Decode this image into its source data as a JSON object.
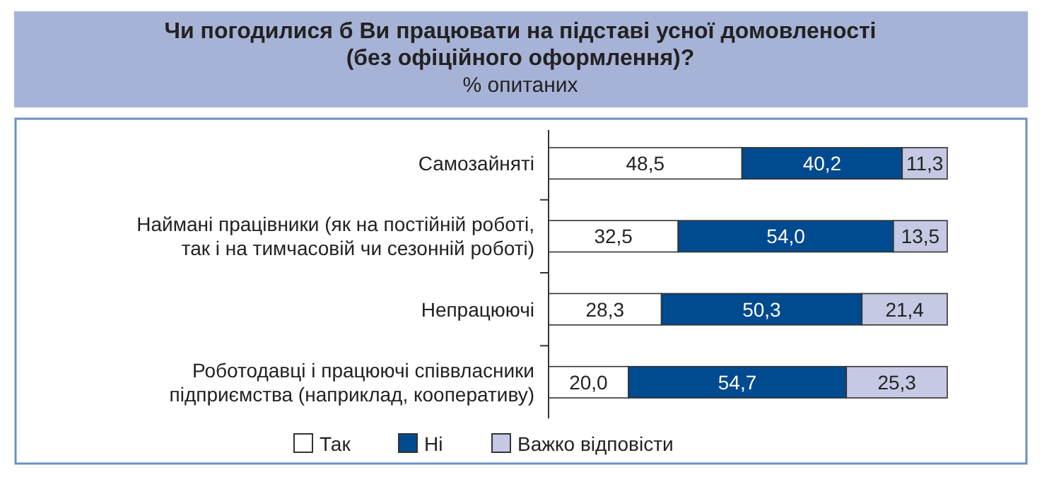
{
  "chart_data": {
    "type": "bar",
    "orientation": "horizontal",
    "stacked": true,
    "title": "Чи погодилися б Ви працювати на підставі усної домовленості (без офіційного оформлення)?",
    "subtitle": "% опитаних",
    "categories": [
      "Самозайняті",
      "Наймані працівники (як на постійній роботі, так і на тимчасовій чи сезонній роботі)",
      "Непрацюючі",
      "Роботодавці і працюючі співвласники підприємства (наприклад, кооперативу)"
    ],
    "tick_labels": "y",
    "legend": "bottom",
    "series": [
      {
        "name": "Так",
        "color": "#ffffff",
        "values": [
          48.5,
          32.5,
          28.3,
          20.0
        ],
        "value_labels": [
          "48,5",
          "32,5",
          "28,3",
          "20,0"
        ]
      },
      {
        "name": "Ні",
        "color": "#004a8f",
        "values": [
          40.2,
          54.0,
          50.3,
          54.7
        ],
        "value_labels": [
          "40,2",
          "54,0",
          "50,3",
          "54,7"
        ]
      },
      {
        "name": "Важко відповісти",
        "color": "#c5c9e3",
        "values": [
          11.3,
          13.5,
          21.4,
          25.3
        ],
        "value_labels": [
          "11,3",
          "13,5",
          "21,4",
          "25,3"
        ]
      }
    ]
  }
}
